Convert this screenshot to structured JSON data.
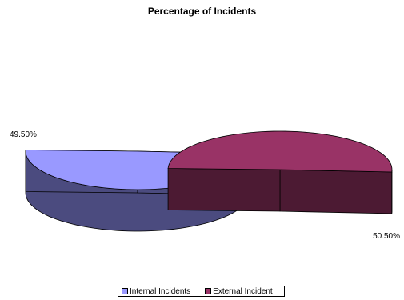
{
  "chart_data": {
    "type": "pie",
    "title": "Percentage of Incidents",
    "slices": [
      {
        "name": "Internal Incidents",
        "value": 49.5,
        "label": "49.50%",
        "color": "#9999ff",
        "side_color": "#4b4b7f"
      },
      {
        "name": "External Incident",
        "value": 50.5,
        "label": "50.50%",
        "color": "#993366",
        "side_color": "#4c1a33"
      }
    ],
    "legend_position": "bottom",
    "style": "3d-exploded"
  }
}
